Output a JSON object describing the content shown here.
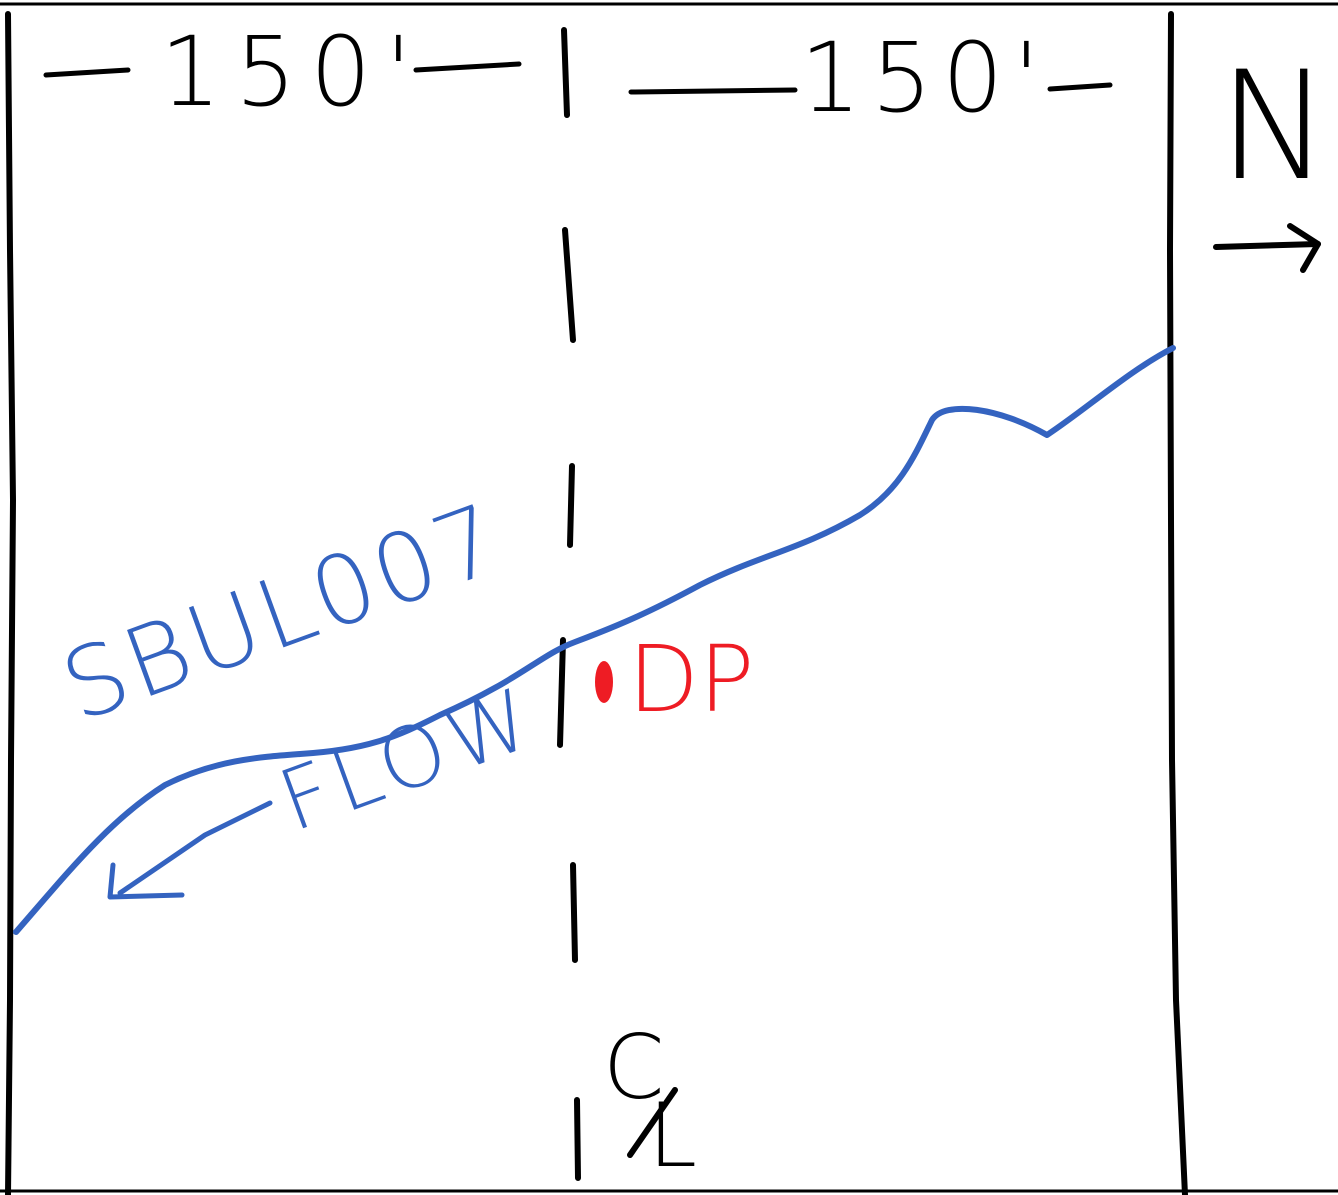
{
  "dimensions": {
    "left_width": "150'",
    "right_width": "150'"
  },
  "north_arrow": {
    "letter": "N",
    "icon": "arrow-right-icon"
  },
  "stream": {
    "name": "SBUL007",
    "flow_label": "FLOW",
    "color": "#3463c0"
  },
  "discharge_point": {
    "label": "DP",
    "color": "#ee1c24"
  },
  "centerline": {
    "letter_top": "C",
    "letter_bottom": "L"
  },
  "colors": {
    "ink": "#000000"
  }
}
